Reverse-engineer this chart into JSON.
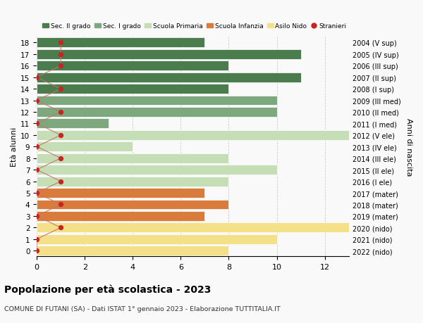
{
  "ages": [
    18,
    17,
    16,
    15,
    14,
    13,
    12,
    11,
    10,
    9,
    8,
    7,
    6,
    5,
    4,
    3,
    2,
    1,
    0
  ],
  "right_labels": [
    "2004 (V sup)",
    "2005 (IV sup)",
    "2006 (III sup)",
    "2007 (II sup)",
    "2008 (I sup)",
    "2009 (III med)",
    "2010 (II med)",
    "2011 (I med)",
    "2012 (V ele)",
    "2013 (IV ele)",
    "2014 (III ele)",
    "2015 (II ele)",
    "2016 (I ele)",
    "2017 (mater)",
    "2018 (mater)",
    "2019 (mater)",
    "2020 (nido)",
    "2021 (nido)",
    "2022 (nido)"
  ],
  "bar_values": [
    7,
    11,
    8,
    11,
    8,
    10,
    10,
    3,
    13,
    4,
    8,
    10,
    8,
    7,
    8,
    7,
    13,
    10,
    8
  ],
  "bar_colors": [
    "#4a7c4e",
    "#4a7c4e",
    "#4a7c4e",
    "#4a7c4e",
    "#4a7c4e",
    "#7da87d",
    "#7da87d",
    "#7da87d",
    "#c5deb5",
    "#c5deb5",
    "#c5deb5",
    "#c5deb5",
    "#c5deb5",
    "#d97b3a",
    "#d97b3a",
    "#d97b3a",
    "#f5e08a",
    "#f5e08a",
    "#f5e08a"
  ],
  "stranieri_x": [
    1,
    1,
    1,
    0,
    1,
    0,
    1,
    0,
    1,
    0,
    1,
    0,
    1,
    0,
    1,
    0,
    1,
    0,
    0
  ],
  "legend_labels": [
    "Sec. II grado",
    "Sec. I grado",
    "Scuola Primaria",
    "Scuola Infanzia",
    "Asilo Nido",
    "Stranieri"
  ],
  "legend_colors": [
    "#4a7c4e",
    "#7da87d",
    "#c5deb5",
    "#d97b3a",
    "#f5e08a",
    "#cc2222"
  ],
  "ylabel_left": "Età alunni",
  "ylabel_right": "Anni di nascita",
  "title": "Popolazione per età scolastica - 2023",
  "subtitle": "COMUNE DI FUTANI (SA) - Dati ISTAT 1° gennaio 2023 - Elaborazione TUTTITALIA.IT",
  "xlim": [
    0,
    13
  ],
  "background_color": "#f9f9f9",
  "grid_color": "#cccccc"
}
